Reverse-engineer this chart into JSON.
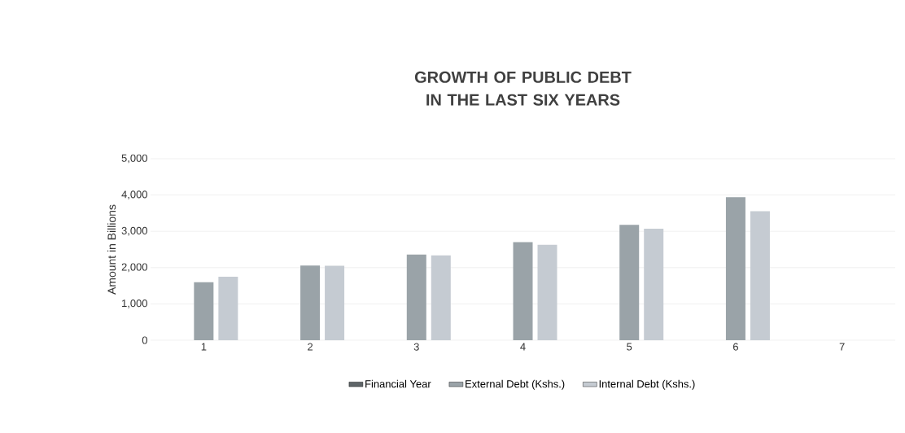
{
  "chart_data": {
    "type": "bar",
    "title": "GROWTH OF PUBLIC DEBT IN THE LAST SIX YEARS",
    "ylabel": "Amount in Billions",
    "categories": [
      "1",
      "2",
      "3",
      "4",
      "5",
      "6",
      "7"
    ],
    "series": [
      {
        "name": "Financial Year",
        "color": "#5f6568",
        "values": [
          null,
          null,
          null,
          null,
          null,
          null,
          null
        ]
      },
      {
        "name": "External Debt (Kshs.)",
        "color": "#9aa3a8",
        "values": [
          1600,
          2060,
          2360,
          2700,
          3180,
          3940,
          null
        ]
      },
      {
        "name": "Internal Debt (Kshs.)",
        "color": "#c5cbd2",
        "values": [
          1750,
          2050,
          2340,
          2630,
          3070,
          3555,
          null
        ]
      }
    ],
    "ylim": [
      0,
      5000
    ],
    "yticks": [
      0,
      {
        "value": 1000,
        "label": "1,000"
      },
      {
        "value": 2000,
        "label": "2,000"
      },
      {
        "value": 3000,
        "label": "3,000"
      },
      {
        "value": 4000,
        "label": "4,000"
      },
      {
        "value": 5000,
        "label": "5,000"
      }
    ],
    "grid": "y",
    "legend": "bottom"
  }
}
